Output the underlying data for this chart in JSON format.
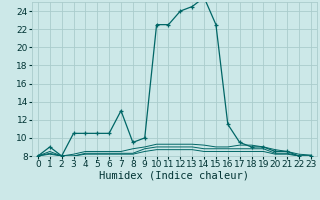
{
  "title": "",
  "xlabel": "Humidex (Indice chaleur)",
  "background_color": "#cce8e8",
  "grid_color": "#aacccc",
  "line_color": "#006666",
  "xlim": [
    -0.5,
    23.5
  ],
  "ylim": [
    8,
    25
  ],
  "yticks": [
    8,
    10,
    12,
    14,
    16,
    18,
    20,
    22,
    24
  ],
  "xticks": [
    0,
    1,
    2,
    3,
    4,
    5,
    6,
    7,
    8,
    9,
    10,
    11,
    12,
    13,
    14,
    15,
    16,
    17,
    18,
    19,
    20,
    21,
    22,
    23
  ],
  "series_main": [
    8.0,
    9.0,
    8.0,
    10.5,
    10.5,
    10.5,
    10.5,
    13.0,
    9.5,
    10.0,
    22.5,
    22.5,
    24.0,
    24.5,
    25.5,
    22.5,
    11.5,
    9.5,
    9.0,
    9.0,
    8.5,
    8.5,
    8.0,
    8.0
  ],
  "series_flat1": [
    8.0,
    8.5,
    8.0,
    8.2,
    8.5,
    8.5,
    8.5,
    8.5,
    8.8,
    9.0,
    9.3,
    9.3,
    9.3,
    9.3,
    9.2,
    9.0,
    9.0,
    9.2,
    9.2,
    9.0,
    8.7,
    8.5,
    8.2,
    8.1
  ],
  "series_flat2": [
    8.0,
    8.3,
    8.0,
    8.0,
    8.3,
    8.3,
    8.3,
    8.3,
    8.3,
    8.8,
    9.0,
    9.0,
    9.0,
    9.0,
    8.8,
    8.8,
    8.8,
    8.8,
    8.8,
    8.8,
    8.3,
    8.3,
    8.0,
    8.0
  ],
  "series_flat3": [
    8.0,
    8.2,
    8.0,
    8.0,
    8.2,
    8.2,
    8.2,
    8.2,
    8.2,
    8.5,
    8.7,
    8.7,
    8.7,
    8.7,
    8.5,
    8.5,
    8.5,
    8.5,
    8.5,
    8.5,
    8.2,
    8.2,
    8.0,
    8.0
  ],
  "tick_fontsize": 6.5,
  "xlabel_fontsize": 7.5
}
